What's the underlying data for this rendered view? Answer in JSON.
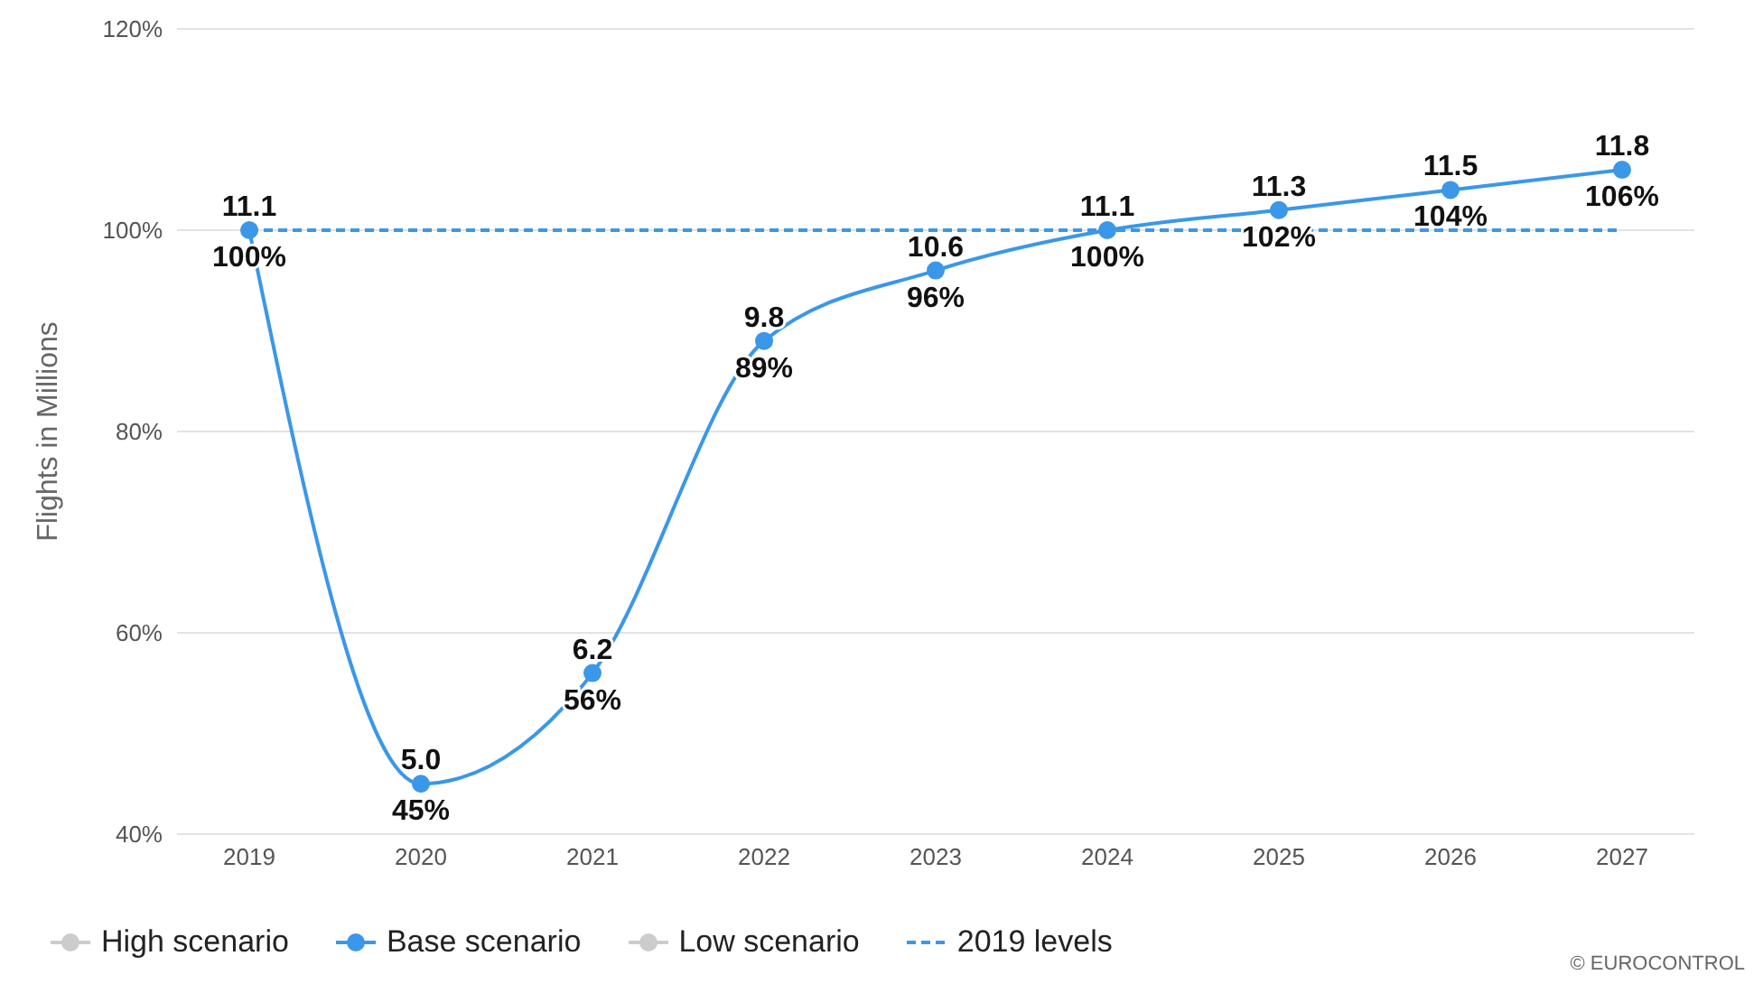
{
  "chart_data": {
    "type": "line",
    "categories": [
      "2019",
      "2020",
      "2021",
      "2022",
      "2023",
      "2024",
      "2025",
      "2026",
      "2027"
    ],
    "series": [
      {
        "name": "High scenario",
        "color": "#cccccc",
        "values": [
          null,
          null,
          null,
          null,
          null,
          null,
          null,
          null,
          null
        ]
      },
      {
        "name": "Base scenario",
        "color": "#3b97e8",
        "marker": "circle",
        "values": [
          100,
          45,
          56,
          89,
          96,
          100,
          102,
          104,
          106
        ],
        "value_labels": [
          "100%",
          "45%",
          "56%",
          "89%",
          "96%",
          "100%",
          "102%",
          "104%",
          "106%"
        ]
      },
      {
        "name": "Low scenario",
        "color": "#cccccc",
        "values": [
          null,
          null,
          null,
          null,
          null,
          null,
          null,
          null,
          null
        ]
      },
      {
        "name": "2019 levels",
        "color": "#3b97e8",
        "line_style": "dashed",
        "marker": "none",
        "values": [
          100,
          100,
          100,
          100,
          100,
          100,
          100,
          100,
          100
        ]
      }
    ],
    "ylabel": "Flights in Millions",
    "ylim": [
      40,
      120
    ],
    "yticks": [
      {
        "value": 40,
        "label": "40%"
      },
      {
        "value": 60,
        "label": "60%"
      },
      {
        "value": 80,
        "label": "80%"
      },
      {
        "value": 100,
        "label": "100%"
      },
      {
        "value": 120,
        "label": "120%"
      }
    ],
    "grid": "y",
    "legend": "bottom left",
    "annotations": [
      {
        "text": "11.1",
        "x": "2019",
        "y": 100
      },
      {
        "text": "5.0",
        "x": "2020",
        "y": 45
      },
      {
        "text": "6.2",
        "x": "2021",
        "y": 56
      },
      {
        "text": "9.8",
        "x": "2022",
        "y": 89
      },
      {
        "text": "10.6",
        "x": "2023",
        "y": 96
      },
      {
        "text": "11.1",
        "x": "2024",
        "y": 100
      },
      {
        "text": "11.3",
        "x": "2025",
        "y": 102
      },
      {
        "text": "11.5",
        "x": "2026",
        "y": 104
      },
      {
        "text": "11.8",
        "x": "2027",
        "y": 106
      },
      "© EUROCONTROL"
    ]
  }
}
